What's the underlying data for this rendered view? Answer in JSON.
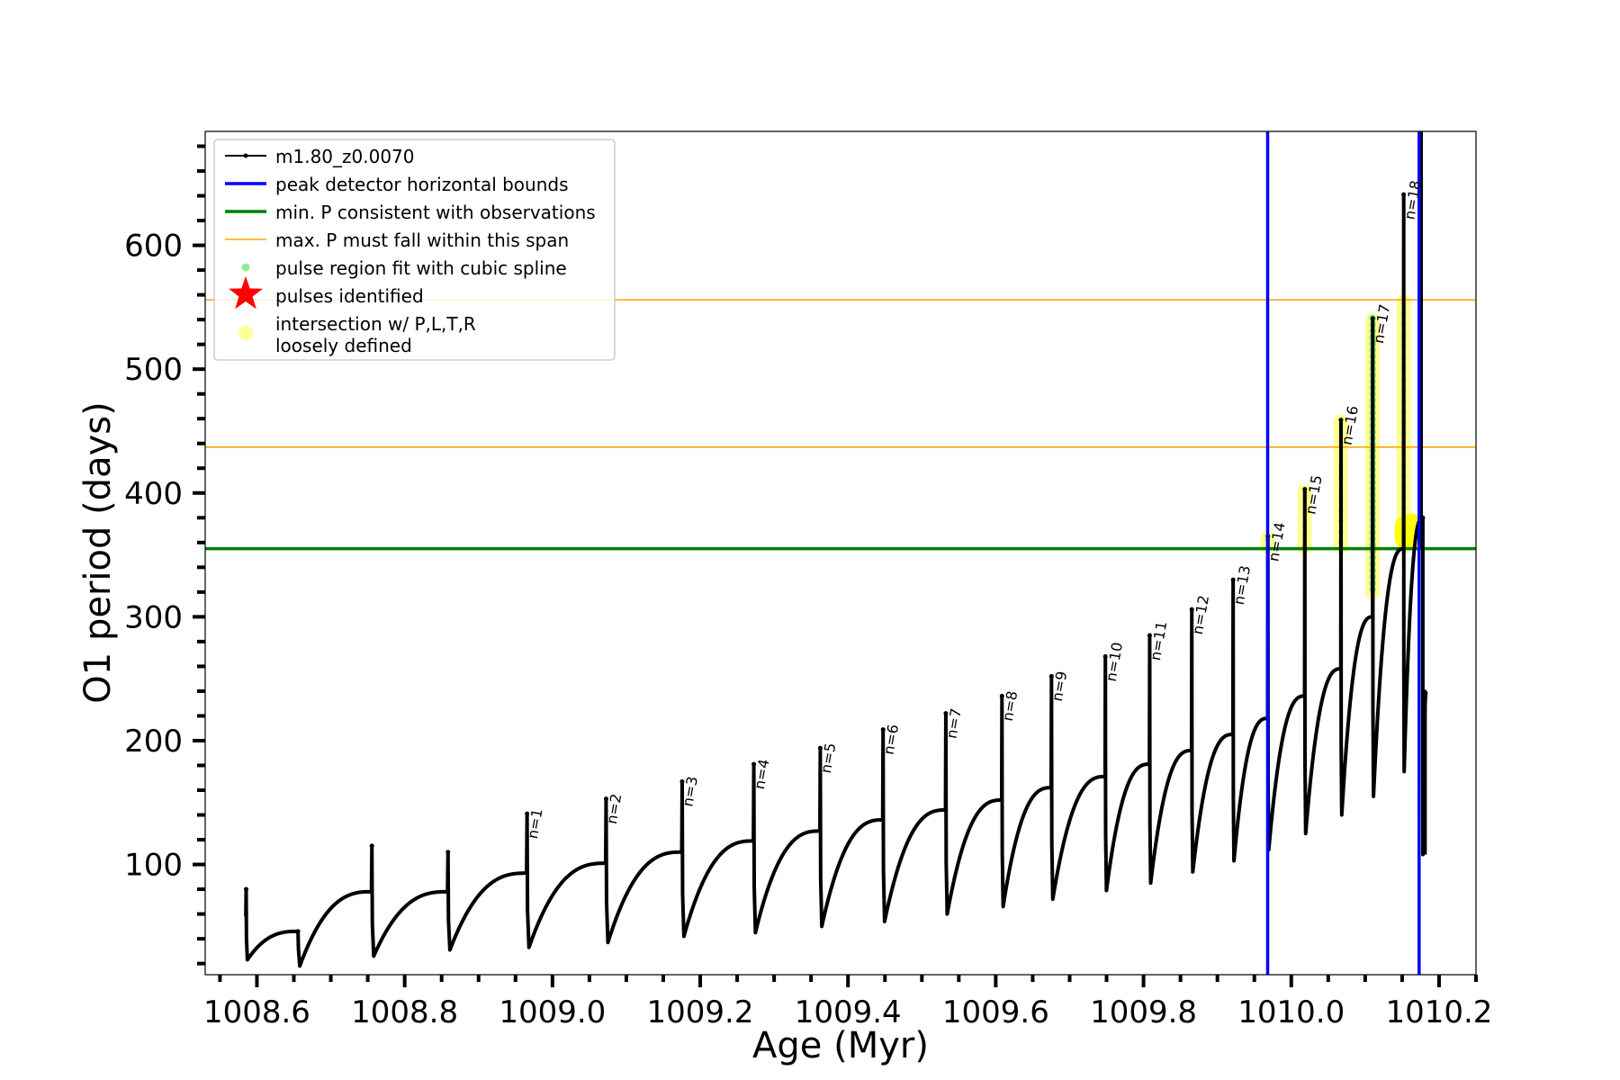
{
  "chart_data": {
    "type": "line",
    "title": "",
    "xlabel": "Age (Myr)",
    "ylabel": "O1 period (days)",
    "xlim": [
      1008.53,
      1010.25
    ],
    "ylim": [
      11,
      692
    ],
    "xticks": [
      "1008.6",
      "1008.8",
      "1009.0",
      "1009.2",
      "1009.4",
      "1009.6",
      "1009.8",
      "1010.0",
      "1010.2"
    ],
    "yticks": [
      "100",
      "200",
      "300",
      "400",
      "500",
      "600"
    ],
    "grid": false,
    "legend_position": "top-left",
    "legend": [
      {
        "label": "m1.80_z0.0070",
        "kind": "line-marker",
        "color": "#000000"
      },
      {
        "label": "peak detector horizontal bounds",
        "kind": "line",
        "color": "#0000ff"
      },
      {
        "label": "min. P consistent with observations",
        "kind": "line",
        "color": "#008000"
      },
      {
        "label": "max. P must fall within this span",
        "kind": "line",
        "color": "#ffa500"
      },
      {
        "label": "pulse region fit with cubic spline",
        "kind": "dot",
        "color": "#90ee90"
      },
      {
        "label": "pulses identified",
        "kind": "star",
        "color": "#ff0000"
      },
      {
        "label": "intersection w/ P,L,T,R\nloosely defined",
        "kind": "circle",
        "color": "#ffff99"
      }
    ],
    "series": [
      {
        "name": "m1.80_z0.0070",
        "color": "#000000",
        "pulses": [
          {
            "start": 1008.585,
            "peak": 80,
            "base": 58,
            "trough": 23,
            "prepeak": 46
          },
          {
            "start": 1008.655,
            "peak": 46,
            "base": 46,
            "trough": 18,
            "prepeak": 78
          },
          {
            "start": 1008.755,
            "peak": 115,
            "base": 78,
            "trough": 26,
            "prepeak": 78
          },
          {
            "start": 1008.858,
            "peak": 110,
            "base": 78,
            "trough": 31,
            "prepeak": 93
          },
          {
            "start": 1008.965,
            "peak": 141,
            "base": 93,
            "trough": 33,
            "prepeak": 101
          },
          {
            "start": 1009.072,
            "peak": 153,
            "base": 101,
            "trough": 37,
            "prepeak": 110
          },
          {
            "start": 1009.175,
            "peak": 167,
            "base": 110,
            "trough": 42,
            "prepeak": 119
          },
          {
            "start": 1009.272,
            "peak": 181,
            "base": 119,
            "trough": 45,
            "prepeak": 127
          },
          {
            "start": 1009.362,
            "peak": 194,
            "base": 127,
            "trough": 50,
            "prepeak": 136
          },
          {
            "start": 1009.447,
            "peak": 209,
            "base": 136,
            "trough": 54,
            "prepeak": 144
          },
          {
            "start": 1009.532,
            "peak": 222,
            "base": 144,
            "trough": 60,
            "prepeak": 152
          },
          {
            "start": 1009.608,
            "peak": 236,
            "base": 152,
            "trough": 66,
            "prepeak": 162
          },
          {
            "start": 1009.675,
            "peak": 252,
            "base": 162,
            "trough": 72,
            "prepeak": 171
          },
          {
            "start": 1009.748,
            "peak": 268,
            "base": 171,
            "trough": 79,
            "prepeak": 181
          },
          {
            "start": 1009.808,
            "peak": 285,
            "base": 181,
            "trough": 85,
            "prepeak": 192
          },
          {
            "start": 1009.865,
            "peak": 306,
            "base": 192,
            "trough": 94,
            "prepeak": 205
          },
          {
            "start": 1009.921,
            "peak": 330,
            "base": 205,
            "trough": 103,
            "prepeak": 218
          },
          {
            "start": 1009.968,
            "peak": 365,
            "base": 218,
            "trough": 112,
            "prepeak": 236
          },
          {
            "start": 1010.018,
            "peak": 403,
            "base": 236,
            "trough": 125,
            "prepeak": 258
          },
          {
            "start": 1010.067,
            "peak": 459,
            "base": 258,
            "trough": 140,
            "prepeak": 300
          },
          {
            "start": 1010.11,
            "peak": 541,
            "base": 300,
            "trough": 155,
            "prepeak": 355
          },
          {
            "start": 1010.152,
            "peak": 641,
            "base": 355,
            "trough": 175,
            "prepeak": 380
          },
          {
            "start": 1010.178,
            "peak": 380,
            "base": 380,
            "trough": 108,
            "prepeak": 240
          }
        ]
      }
    ],
    "hlines": [
      {
        "y": 355,
        "color": "#008000",
        "label": "min. P consistent with observations"
      },
      {
        "y": 437,
        "color": "#ffa500",
        "label": "max. P must fall within this span"
      },
      {
        "y": 556,
        "color": "#ffa500",
        "label": "max. P must fall within this span"
      }
    ],
    "vlines": [
      {
        "x": 1009.968,
        "color": "#0000ff",
        "label": "peak detector horizontal bounds"
      },
      {
        "x": 1010.173,
        "color": "#0000ff",
        "label": "peak detector horizontal bounds"
      }
    ],
    "annotations": [
      {
        "text": "n=1",
        "x": 1008.967,
        "y": 142
      },
      {
        "text": "n=2",
        "x": 1009.074,
        "y": 154
      },
      {
        "text": "n=3",
        "x": 1009.177,
        "y": 168
      },
      {
        "text": "n=4",
        "x": 1009.274,
        "y": 182
      },
      {
        "text": "n=5",
        "x": 1009.364,
        "y": 195
      },
      {
        "text": "n=6",
        "x": 1009.449,
        "y": 210
      },
      {
        "text": "n=7",
        "x": 1009.534,
        "y": 223
      },
      {
        "text": "n=8",
        "x": 1009.61,
        "y": 237
      },
      {
        "text": "n=9",
        "x": 1009.677,
        "y": 253
      },
      {
        "text": "n=10",
        "x": 1009.75,
        "y": 269
      },
      {
        "text": "n=11",
        "x": 1009.81,
        "y": 286
      },
      {
        "text": "n=12",
        "x": 1009.867,
        "y": 307
      },
      {
        "text": "n=13",
        "x": 1009.923,
        "y": 331
      },
      {
        "text": "n=14",
        "x": 1009.97,
        "y": 366
      },
      {
        "text": "n=15",
        "x": 1010.02,
        "y": 404
      },
      {
        "text": "n=16",
        "x": 1010.069,
        "y": 460
      },
      {
        "text": "n=17",
        "x": 1010.112,
        "y": 542
      },
      {
        "text": "n=18",
        "x": 1010.154,
        "y": 642
      }
    ],
    "highlight_regions": [
      {
        "x": 1009.968,
        "ymin": 355,
        "ymax": 365,
        "kind": "intersection"
      },
      {
        "x": 1010.018,
        "ymin": 355,
        "ymax": 403,
        "kind": "intersection"
      },
      {
        "x": 1010.067,
        "ymin": 355,
        "ymax": 459,
        "kind": "intersection"
      },
      {
        "x": 1010.11,
        "ymin": 318,
        "ymax": 541,
        "kind": "spline-fit"
      },
      {
        "x": 1010.152,
        "ymin": 355,
        "ymax": 556,
        "kind": "intersection"
      },
      {
        "x1": 1010.14,
        "x2": 1010.178,
        "ymin": 355,
        "ymax": 382,
        "kind": "intersection-blob"
      }
    ]
  }
}
